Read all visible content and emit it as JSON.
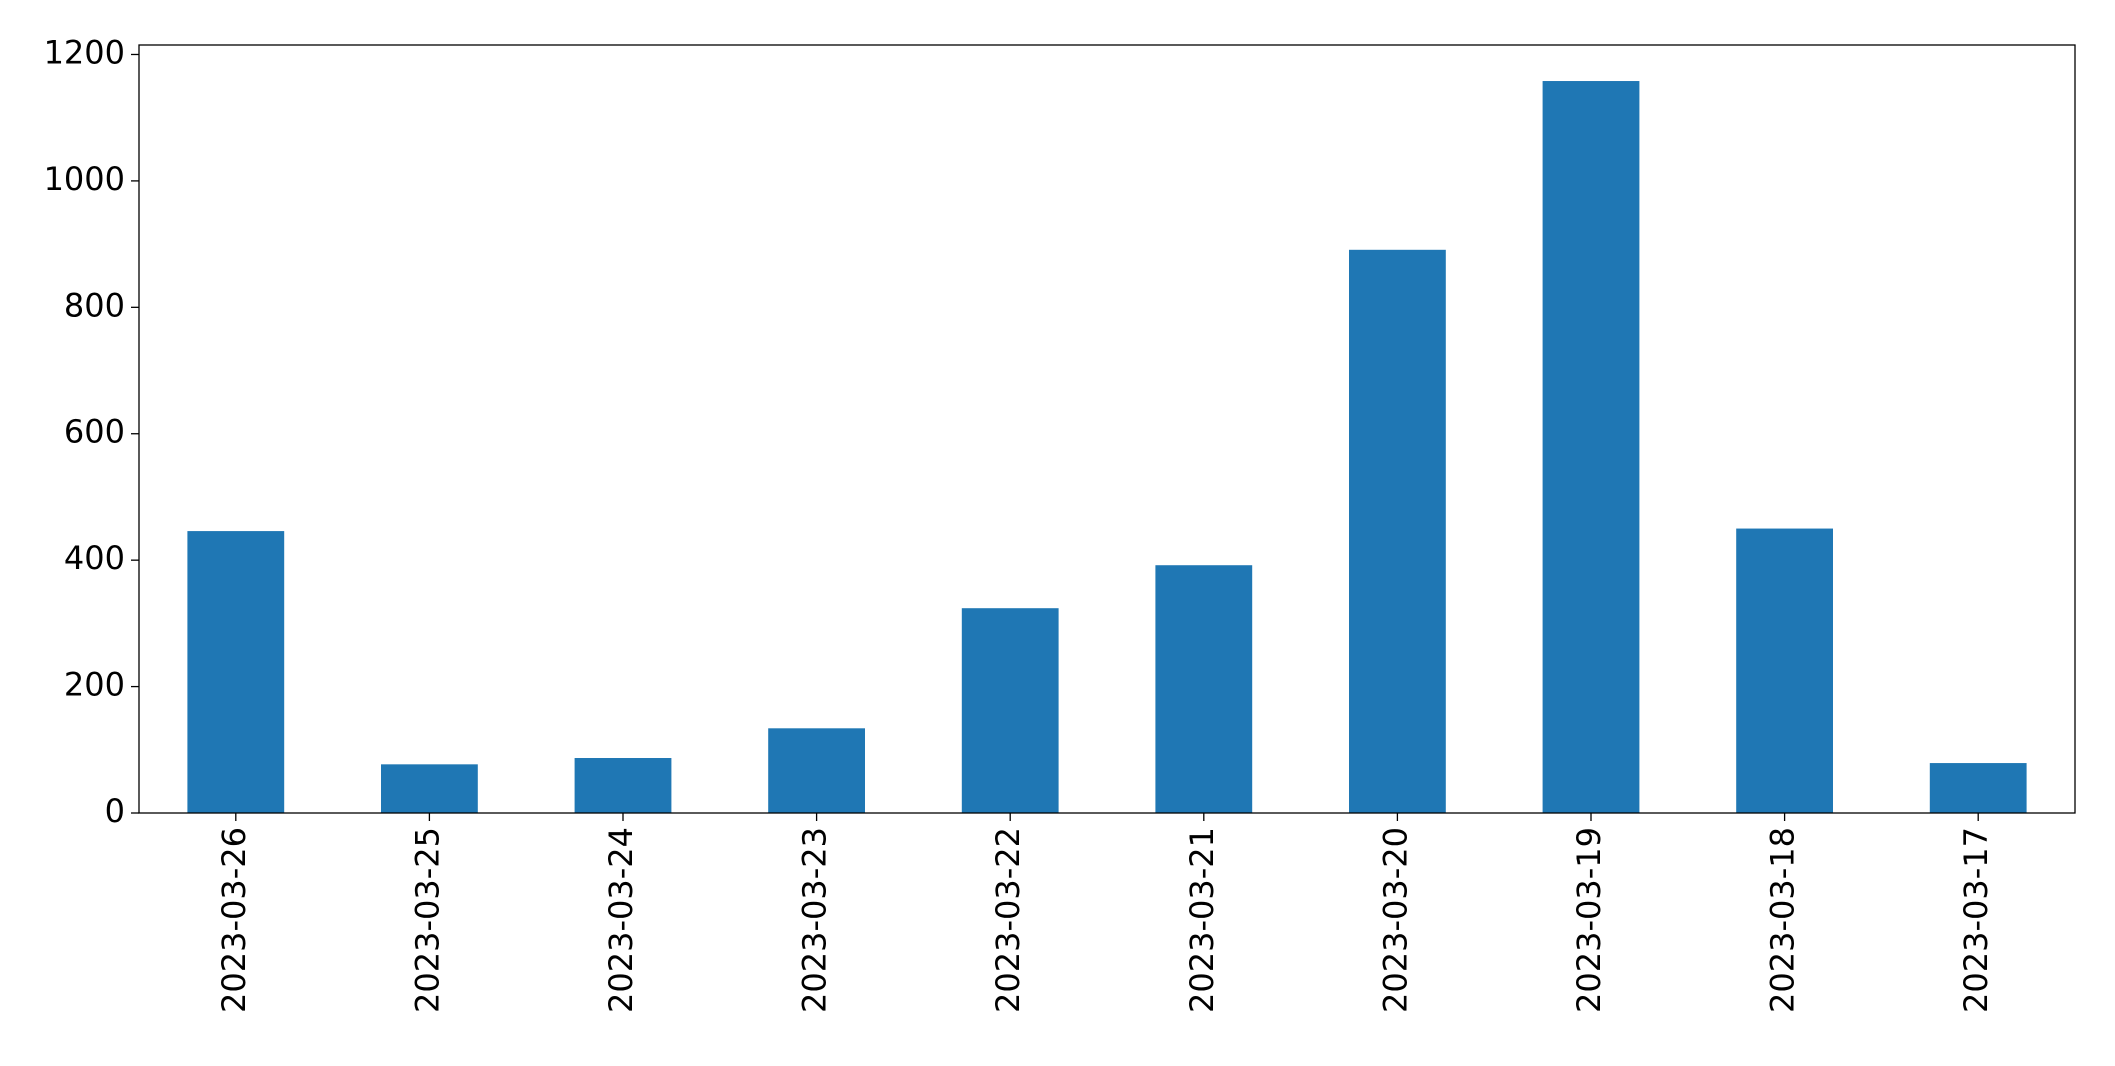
{
  "chart_data": {
    "type": "bar",
    "categories": [
      "2023-03-26",
      "2023-03-25",
      "2023-03-24",
      "2023-03-23",
      "2023-03-22",
      "2023-03-21",
      "2023-03-20",
      "2023-03-19",
      "2023-03-18",
      "2023-03-17"
    ],
    "values": [
      446,
      77,
      87,
      134,
      324,
      392,
      891,
      1158,
      450,
      79
    ],
    "color": "#1f77b4",
    "ylim": [
      0,
      1215
    ],
    "yticks": [
      0,
      200,
      400,
      600,
      800,
      1000,
      1200
    ],
    "grid": false
  }
}
